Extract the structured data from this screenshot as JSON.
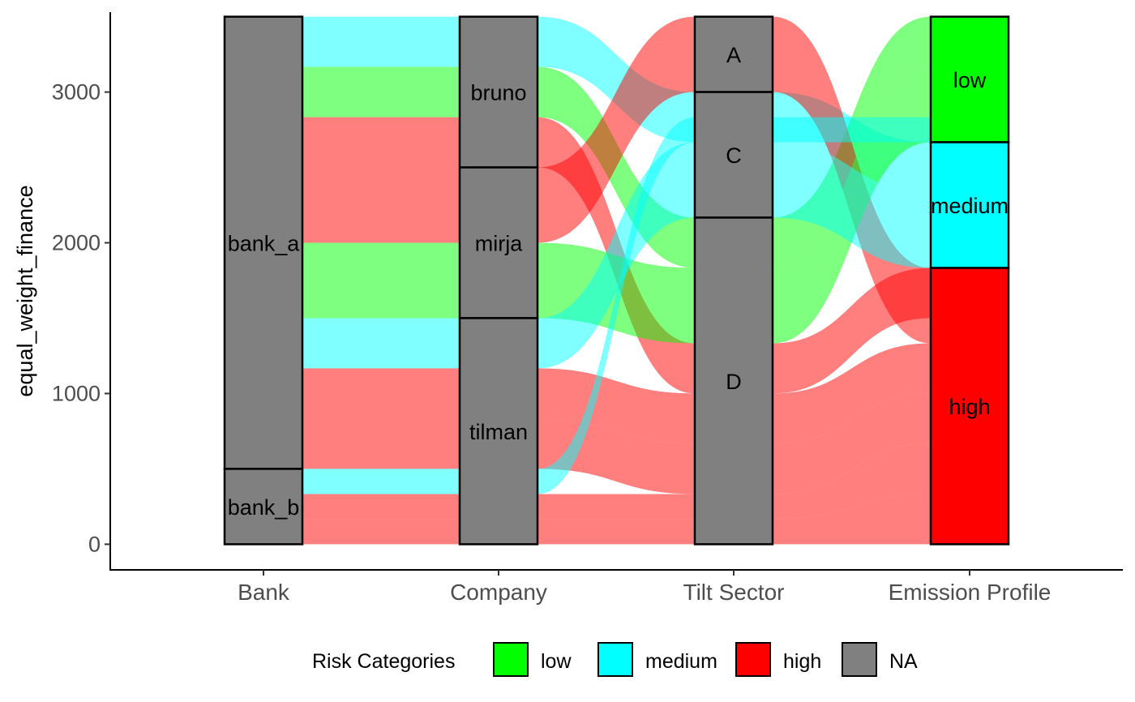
{
  "chart_data": {
    "type": "alluvial",
    "title": "",
    "xlabel": "",
    "ylabel": "equal_weight_finance",
    "ylim": [
      -170,
      3530
    ],
    "yticks": [
      0,
      1000,
      2000,
      3000
    ],
    "axes": [
      "Bank",
      "Company",
      "Tilt Sector",
      "Emission Profile"
    ],
    "strata": [
      {
        "axis": "Bank",
        "label": "bank_a",
        "y0": 500,
        "y1": 3500
      },
      {
        "axis": "Bank",
        "label": "bank_b",
        "y0": 0,
        "y1": 500
      },
      {
        "axis": "Company",
        "label": "bruno",
        "y0": 2500,
        "y1": 3500
      },
      {
        "axis": "Company",
        "label": "mirja",
        "y0": 1500,
        "y1": 2500
      },
      {
        "axis": "Company",
        "label": "tilman",
        "y0": 0,
        "y1": 1500
      },
      {
        "axis": "Tilt Sector",
        "label": "A",
        "y0": 3000,
        "y1": 3500
      },
      {
        "axis": "Tilt Sector",
        "label": "C",
        "y0": 2167,
        "y1": 3000
      },
      {
        "axis": "Tilt Sector",
        "label": "D",
        "y0": 0,
        "y1": 2167
      },
      {
        "axis": "Emission Profile",
        "label": "low",
        "y0": 2667,
        "y1": 3500,
        "category": "low"
      },
      {
        "axis": "Emission Profile",
        "label": "medium",
        "y0": 1833,
        "y1": 2667,
        "category": "medium"
      },
      {
        "axis": "Emission Profile",
        "label": "high",
        "y0": 0,
        "y1": 1833,
        "category": "high"
      }
    ],
    "flows": [
      {
        "category": "medium",
        "segments": [
          [
            3167,
            3500
          ],
          [
            3167,
            3500
          ],
          [
            2667,
            3000
          ],
          [
            2333,
            2667
          ]
        ]
      },
      {
        "category": "low",
        "segments": [
          [
            2833,
            3167
          ],
          [
            2833,
            3167
          ],
          [
            1833,
            2167
          ],
          [
            3167,
            3500
          ]
        ]
      },
      {
        "category": "high",
        "segments": [
          [
            2500,
            2833
          ],
          [
            2500,
            2833
          ],
          [
            1000,
            1333
          ],
          [
            1500,
            1833
          ]
        ]
      },
      {
        "category": "high",
        "segments": [
          [
            2000,
            2500
          ],
          [
            2000,
            2500
          ],
          [
            3000,
            3500
          ],
          [
            1333,
            1833
          ]
        ]
      },
      {
        "category": "low",
        "segments": [
          [
            1500,
            2000
          ],
          [
            1500,
            2000
          ],
          [
            1333,
            1833
          ],
          [
            2667,
            3167
          ]
        ]
      },
      {
        "category": "medium",
        "segments": [
          [
            1167,
            1500
          ],
          [
            1167,
            1500
          ],
          [
            2167,
            2667
          ],
          [
            1833,
            2333
          ]
        ]
      },
      {
        "category": "high",
        "segments": [
          [
            833,
            1167
          ],
          [
            833,
            1167
          ],
          [
            667,
            1000
          ],
          [
            1000,
            1333
          ]
        ]
      },
      {
        "category": "high",
        "segments": [
          [
            500,
            833
          ],
          [
            500,
            833
          ],
          [
            333,
            667
          ],
          [
            667,
            1000
          ]
        ]
      },
      {
        "category": "medium",
        "segments": [
          [
            333,
            500
          ],
          [
            333,
            500
          ],
          [
            2667,
            2833
          ],
          [
            2667,
            2833
          ]
        ]
      },
      {
        "category": "high",
        "segments": [
          [
            167,
            333
          ],
          [
            167,
            333
          ],
          [
            167,
            333
          ],
          [
            333,
            667
          ]
        ]
      },
      {
        "category": "high",
        "segments": [
          [
            0,
            167
          ],
          [
            0,
            167
          ],
          [
            0,
            167
          ],
          [
            0,
            333
          ]
        ]
      }
    ],
    "legend": {
      "title": "Risk Categories",
      "position": "bottom",
      "entries": [
        {
          "label": "low",
          "category": "low"
        },
        {
          "label": "medium",
          "category": "medium"
        },
        {
          "label": "high",
          "category": "high"
        },
        {
          "label": "NA",
          "category": "NA"
        }
      ]
    },
    "colors": {
      "low": "#00ff00",
      "medium": "#00ffff",
      "high": "#ff0000",
      "NA": "#808080"
    }
  }
}
